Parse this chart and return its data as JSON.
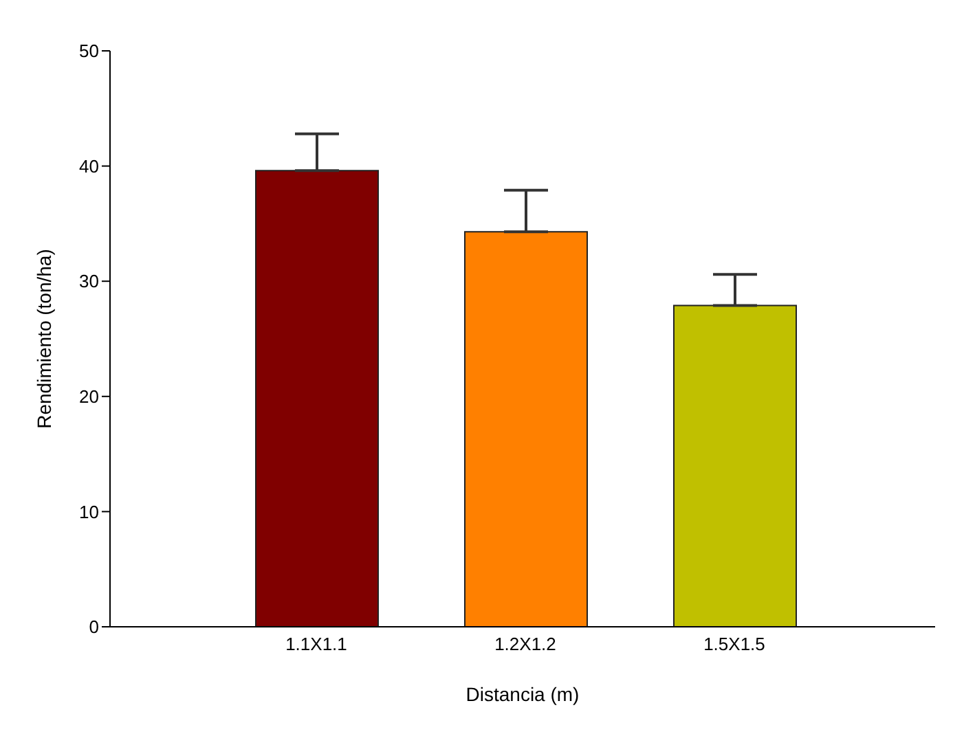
{
  "chart_data": {
    "type": "bar",
    "xlabel": "Distancia (m)",
    "ylabel": "Rendimiento (ton/ha)",
    "categories": [
      "1.1X1.1",
      "1.2X1.2",
      "1.5X1.5"
    ],
    "values": [
      39.6,
      34.3,
      27.9
    ],
    "errors": [
      3.2,
      3.6,
      2.7
    ],
    "colors": [
      "#800000",
      "#ff8000",
      "#c0c000"
    ],
    "ylim": [
      0,
      50
    ],
    "yticks": [
      0,
      10,
      20,
      30,
      40,
      50
    ],
    "grid": false,
    "legend": false
  }
}
